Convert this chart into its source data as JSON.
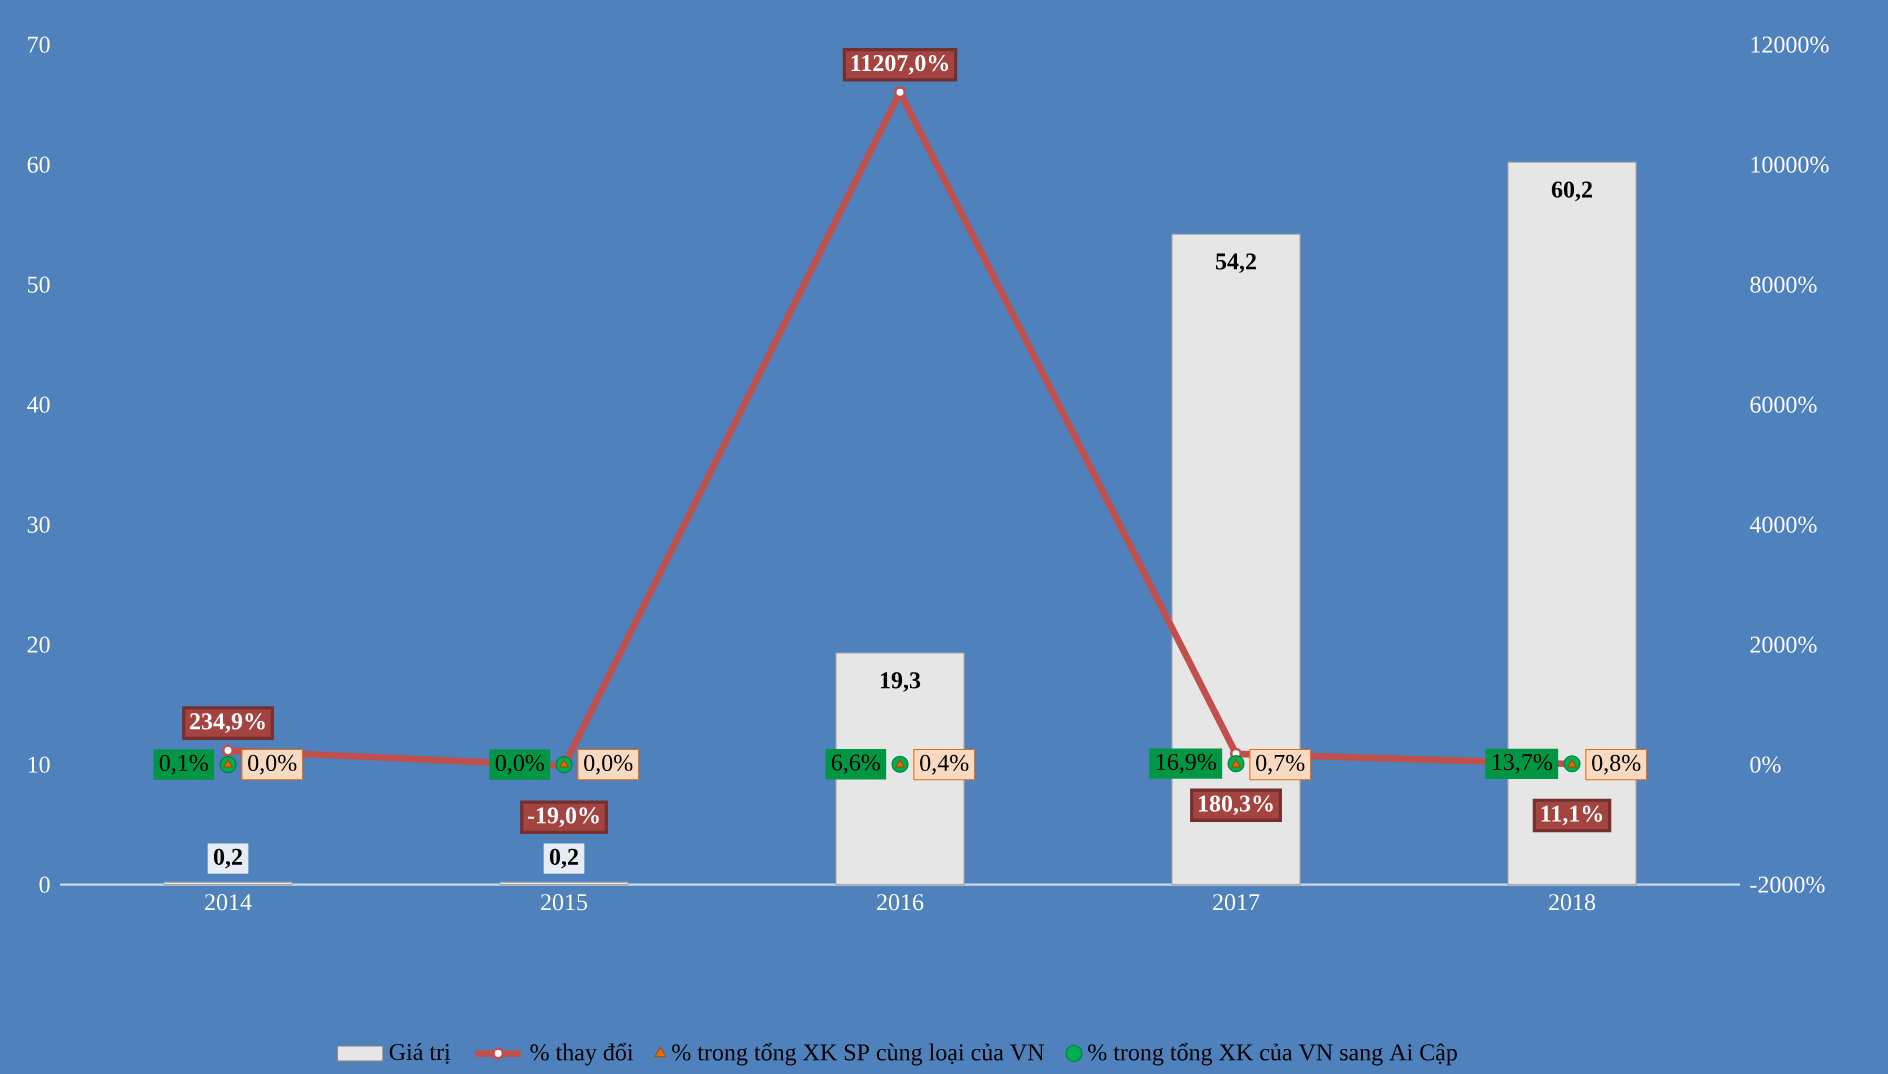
{
  "chart_data": {
    "type": "bar",
    "categories": [
      "2014",
      "2015",
      "2016",
      "2017",
      "2018"
    ],
    "ylim": [
      0,
      70
    ],
    "yticks": [
      0,
      10,
      20,
      30,
      40,
      50,
      60,
      70
    ],
    "y2lim": [
      -2000,
      12000
    ],
    "y2ticks": [
      {
        "value": -2000,
        "label": "-2000%"
      },
      {
        "value": 0,
        "label": "0%"
      },
      {
        "value": 2000,
        "label": "2000%"
      },
      {
        "value": 4000,
        "label": "4000%"
      },
      {
        "value": 6000,
        "label": "6000%"
      },
      {
        "value": 8000,
        "label": "8000%"
      },
      {
        "value": 10000,
        "label": "10000%"
      },
      {
        "value": 12000,
        "label": "12000%"
      }
    ],
    "legend": "bottom",
    "series": [
      {
        "name": "Giá trị",
        "color": "#e6e6e6",
        "values": [
          0.2,
          0.2,
          19.3,
          54.2,
          60.2
        ],
        "value_labels": [
          "0,2",
          "0,2",
          "19,3",
          "54,2",
          "60,2"
        ]
      },
      {
        "name": "% thay đổi",
        "type": "line",
        "axis": "y2",
        "marker": "circle",
        "color": "#c0504d",
        "values": [
          234.9,
          -19.0,
          11207.0,
          180.3,
          11.1
        ],
        "value_labels": [
          "234,9%",
          "-19,0%",
          "11207,0%",
          "180,3%",
          "11,1%"
        ]
      },
      {
        "name": "% trong tổng XK SP cùng loại của VN",
        "type": "scatter",
        "axis": "y2",
        "marker": "triangle",
        "color": "#e46c0a",
        "values": [
          0.0,
          0.0,
          0.4,
          0.7,
          0.8
        ],
        "value_labels": [
          "0,0%",
          "0,0%",
          "0,4%",
          "0,7%",
          "0,8%"
        ]
      },
      {
        "name": "% trong tổng XK của VN sang Ai Cập",
        "type": "scatter",
        "axis": "y2",
        "marker": "circle",
        "color": "#00b050",
        "values": [
          0.1,
          0.0,
          6.6,
          16.9,
          13.7
        ],
        "value_labels": [
          "0,1%",
          "0,0%",
          "6,6%",
          "16,9%",
          "13,7%"
        ]
      }
    ]
  }
}
